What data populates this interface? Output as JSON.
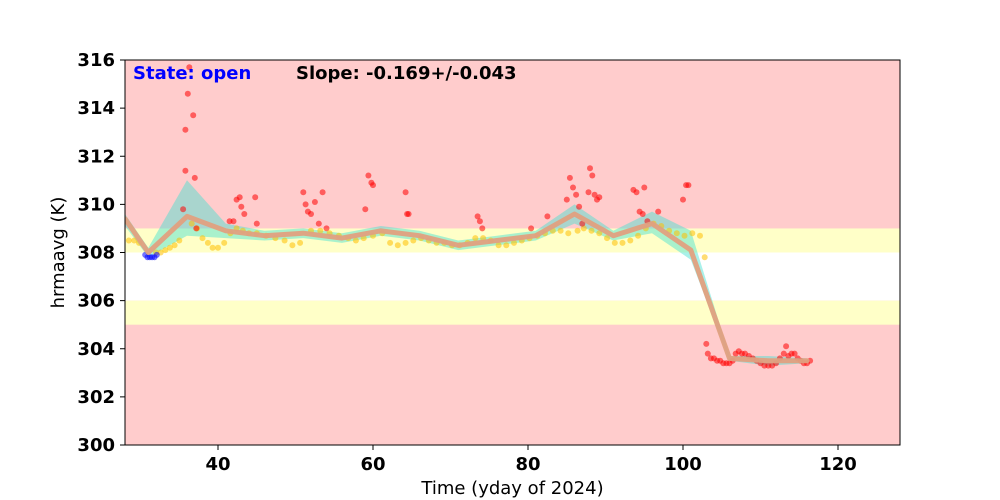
{
  "chart_data": {
    "type": "scatter",
    "title": "",
    "xlabel": "Time (yday of 2024)",
    "ylabel": "hrmaavg (K)",
    "xlim": [
      28,
      128
    ],
    "ylim": [
      300,
      316
    ],
    "x_ticks": [
      40,
      60,
      80,
      100,
      120
    ],
    "y_ticks": [
      300,
      302,
      304,
      306,
      308,
      310,
      312,
      314,
      316
    ],
    "grid": false,
    "annotations": {
      "state": "State: open",
      "slope": "Slope: -0.169+/-0.043"
    },
    "colors": {
      "background_red": "#ffcccc",
      "band_yellow": "#ffffc8",
      "band_white": "#ffffff",
      "points_red": "#ff0000",
      "points_orange": "#ffbf00",
      "points_blue": "#0000ff",
      "trend_line": "#e0a080",
      "envelope": "#40e0d0",
      "state_text": "#0000ff",
      "slope_text": "#000000"
    },
    "bands": [
      {
        "name": "red-zone",
        "y0": 300,
        "y1": 316,
        "color": "#ffcccc"
      },
      {
        "name": "yellow-upper",
        "y0": 308,
        "y1": 309,
        "color": "#ffffc8"
      },
      {
        "name": "white-nominal",
        "y0": 306,
        "y1": 308,
        "color": "#ffffff"
      },
      {
        "name": "yellow-lower",
        "y0": 305,
        "y1": 306,
        "color": "#ffffc8"
      }
    ],
    "trend": {
      "x": [
        28,
        31,
        36,
        41,
        46,
        51,
        56,
        61,
        66,
        71,
        76,
        81,
        86,
        91,
        96,
        101,
        106,
        111,
        116
      ],
      "y": [
        309.4,
        308.0,
        309.5,
        308.9,
        308.7,
        308.8,
        308.6,
        308.9,
        308.7,
        308.3,
        308.5,
        308.7,
        309.6,
        308.7,
        309.2,
        308.1,
        303.6,
        303.5,
        303.5
      ]
    },
    "envelope": {
      "x": [
        28,
        31,
        36,
        41,
        46,
        51,
        56,
        61,
        66,
        71,
        76,
        81,
        86,
        91,
        96,
        101,
        106,
        111,
        116
      ],
      "upper": [
        309.6,
        308.2,
        311.0,
        309.2,
        308.9,
        309.0,
        308.8,
        309.1,
        308.9,
        308.5,
        308.7,
        308.9,
        310.0,
        308.9,
        309.7,
        308.9,
        303.7,
        303.7,
        303.6
      ],
      "lower": [
        309.1,
        307.8,
        308.7,
        308.6,
        308.5,
        308.6,
        308.4,
        308.7,
        308.5,
        308.1,
        308.3,
        308.5,
        309.2,
        308.5,
        308.8,
        307.7,
        303.5,
        303.3,
        303.4
      ]
    },
    "series": [
      {
        "color": "#ffbf00",
        "points": [
          [
            28.5,
            308.5
          ],
          [
            29.2,
            308.5
          ],
          [
            29.8,
            308.4
          ],
          [
            32.0,
            308.0
          ],
          [
            32.6,
            308.0
          ],
          [
            33.2,
            308.1
          ],
          [
            33.8,
            308.2
          ],
          [
            34.4,
            308.3
          ],
          [
            35.0,
            308.5
          ],
          [
            36.6,
            309.2
          ],
          [
            37.3,
            309.0
          ],
          [
            38.0,
            308.6
          ],
          [
            38.7,
            308.4
          ],
          [
            39.3,
            308.2
          ],
          [
            40.0,
            308.2
          ],
          [
            40.8,
            308.4
          ],
          [
            41.6,
            308.8
          ],
          [
            42.4,
            309.0
          ],
          [
            43.2,
            308.9
          ],
          [
            44.0,
            308.8
          ],
          [
            45.0,
            308.8
          ],
          [
            46.2,
            308.7
          ],
          [
            47.4,
            308.6
          ],
          [
            48.6,
            308.5
          ],
          [
            49.6,
            308.3
          ],
          [
            50.6,
            308.4
          ],
          [
            52.0,
            308.9
          ],
          [
            53.2,
            308.9
          ],
          [
            54.4,
            308.8
          ],
          [
            55.6,
            308.7
          ],
          [
            56.8,
            308.6
          ],
          [
            57.8,
            308.5
          ],
          [
            58.8,
            308.6
          ],
          [
            60.0,
            308.7
          ],
          [
            61.2,
            308.8
          ],
          [
            62.2,
            308.4
          ],
          [
            63.2,
            308.3
          ],
          [
            64.2,
            308.4
          ],
          [
            65.2,
            308.5
          ],
          [
            66.2,
            308.6
          ],
          [
            67.2,
            308.5
          ],
          [
            68.2,
            308.4
          ],
          [
            69.2,
            308.4
          ],
          [
            70.2,
            308.3
          ],
          [
            71.2,
            308.3
          ],
          [
            72.2,
            308.4
          ],
          [
            73.2,
            308.6
          ],
          [
            74.2,
            308.6
          ],
          [
            75.2,
            308.5
          ],
          [
            76.2,
            308.3
          ],
          [
            77.2,
            308.3
          ],
          [
            78.2,
            308.4
          ],
          [
            79.2,
            308.5
          ],
          [
            80.2,
            308.6
          ],
          [
            81.2,
            308.7
          ],
          [
            82.2,
            308.8
          ],
          [
            83.2,
            308.9
          ],
          [
            84.2,
            308.9
          ],
          [
            85.2,
            308.8
          ],
          [
            86.4,
            308.9
          ],
          [
            87.2,
            309.0
          ],
          [
            88.2,
            308.9
          ],
          [
            89.2,
            308.8
          ],
          [
            90.2,
            308.6
          ],
          [
            91.2,
            308.4
          ],
          [
            92.2,
            308.4
          ],
          [
            93.2,
            308.5
          ],
          [
            94.2,
            308.7
          ],
          [
            95.2,
            309.0
          ],
          [
            96.2,
            309.2
          ],
          [
            97.2,
            309.1
          ],
          [
            98.2,
            308.9
          ],
          [
            99.2,
            308.8
          ],
          [
            100.2,
            308.7
          ],
          [
            101.2,
            308.8
          ],
          [
            102.2,
            308.7
          ],
          [
            102.8,
            307.8
          ]
        ]
      },
      {
        "color": "#ff0000",
        "points": [
          [
            35.5,
            309.8
          ],
          [
            35.8,
            313.1
          ],
          [
            36.1,
            314.6
          ],
          [
            36.3,
            315.7
          ],
          [
            35.8,
            311.4
          ],
          [
            36.8,
            313.7
          ],
          [
            37.0,
            311.1
          ],
          [
            37.2,
            309.0
          ],
          [
            41.5,
            309.3
          ],
          [
            42.0,
            309.3
          ],
          [
            42.4,
            310.2
          ],
          [
            42.8,
            310.3
          ],
          [
            43.0,
            309.9
          ],
          [
            43.4,
            309.6
          ],
          [
            44.8,
            310.3
          ],
          [
            45.0,
            309.2
          ],
          [
            51.0,
            310.5
          ],
          [
            51.3,
            310.0
          ],
          [
            51.6,
            309.7
          ],
          [
            52.0,
            309.6
          ],
          [
            52.5,
            310.1
          ],
          [
            53.0,
            309.2
          ],
          [
            53.5,
            310.5
          ],
          [
            54.0,
            309.0
          ],
          [
            59.0,
            309.8
          ],
          [
            59.4,
            311.2
          ],
          [
            59.8,
            310.9
          ],
          [
            60.0,
            310.8
          ],
          [
            64.2,
            310.5
          ],
          [
            64.4,
            309.6
          ],
          [
            64.6,
            309.6
          ],
          [
            73.5,
            309.5
          ],
          [
            73.8,
            309.3
          ],
          [
            74.1,
            309.0
          ],
          [
            80.4,
            309.0
          ],
          [
            82.5,
            309.5
          ],
          [
            85.0,
            310.2
          ],
          [
            85.4,
            311.1
          ],
          [
            85.8,
            310.7
          ],
          [
            86.2,
            310.4
          ],
          [
            86.6,
            309.9
          ],
          [
            87.0,
            309.2
          ],
          [
            87.8,
            310.5
          ],
          [
            88.0,
            311.5
          ],
          [
            88.3,
            311.2
          ],
          [
            88.6,
            310.4
          ],
          [
            88.9,
            310.2
          ],
          [
            89.2,
            310.3
          ],
          [
            93.6,
            310.6
          ],
          [
            94.0,
            310.5
          ],
          [
            94.4,
            309.7
          ],
          [
            94.8,
            309.6
          ],
          [
            95.0,
            310.7
          ],
          [
            95.4,
            309.3
          ],
          [
            96.8,
            309.7
          ],
          [
            100.0,
            310.2
          ],
          [
            100.4,
            310.8
          ],
          [
            100.7,
            310.8
          ],
          [
            103.0,
            304.2
          ],
          [
            103.2,
            303.8
          ],
          [
            103.6,
            303.6
          ],
          [
            104.0,
            303.6
          ],
          [
            104.4,
            303.5
          ],
          [
            104.8,
            303.5
          ],
          [
            105.2,
            303.4
          ],
          [
            105.6,
            303.4
          ],
          [
            106.0,
            303.4
          ],
          [
            106.4,
            303.5
          ],
          [
            106.8,
            303.8
          ],
          [
            107.2,
            303.9
          ],
          [
            107.6,
            303.8
          ],
          [
            108.0,
            303.8
          ],
          [
            108.5,
            303.7
          ],
          [
            109.0,
            303.6
          ],
          [
            109.5,
            303.5
          ],
          [
            110.0,
            303.4
          ],
          [
            110.5,
            303.3
          ],
          [
            111.0,
            303.3
          ],
          [
            111.5,
            303.3
          ],
          [
            112.0,
            303.4
          ],
          [
            112.5,
            303.6
          ],
          [
            113.0,
            303.8
          ],
          [
            113.3,
            304.1
          ],
          [
            113.6,
            303.7
          ],
          [
            114.0,
            303.8
          ],
          [
            114.4,
            303.8
          ],
          [
            114.8,
            303.6
          ],
          [
            115.2,
            303.5
          ],
          [
            115.6,
            303.4
          ],
          [
            116.0,
            303.4
          ],
          [
            116.4,
            303.5
          ]
        ]
      },
      {
        "color": "#0000ff",
        "points": [
          [
            30.6,
            307.9
          ],
          [
            30.9,
            307.8
          ],
          [
            31.2,
            307.8
          ],
          [
            31.5,
            307.8
          ],
          [
            31.8,
            307.8
          ],
          [
            32.1,
            307.9
          ]
        ]
      }
    ]
  }
}
